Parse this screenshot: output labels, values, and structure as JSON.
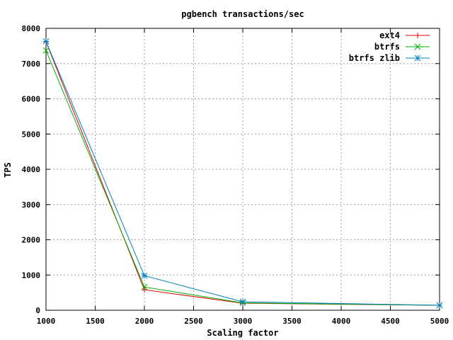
{
  "chart_data": {
    "type": "line",
    "title": "pgbench transactions/sec",
    "xlabel": "Scaling factor",
    "ylabel": "TPS",
    "xlim": [
      1000,
      5000
    ],
    "ylim": [
      0,
      8000
    ],
    "x_ticks": [
      1000,
      1500,
      2000,
      2500,
      3000,
      3500,
      4000,
      4500,
      5000
    ],
    "y_ticks": [
      0,
      1000,
      2000,
      3000,
      4000,
      5000,
      6000,
      7000,
      8000
    ],
    "grid": true,
    "legend_position": "top-right",
    "x": [
      1000,
      2000,
      3000,
      5000
    ],
    "series": [
      {
        "name": "ext4",
        "color": "#e00000",
        "marker": "plus",
        "values": [
          7620,
          580,
          200,
          140
        ]
      },
      {
        "name": "btrfs",
        "color": "#00b000",
        "marker": "cross",
        "values": [
          7370,
          660,
          210,
          140
        ]
      },
      {
        "name": "btrfs zlib",
        "color": "#0080c0",
        "marker": "star",
        "values": [
          7630,
          980,
          240,
          140
        ]
      }
    ]
  }
}
